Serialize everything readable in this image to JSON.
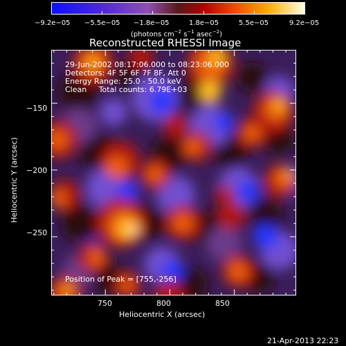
{
  "colorbar": {
    "ticks": [
      "−9.2e−05",
      "−5.5e−05",
      "−1.8e−05",
      "1.8e−05",
      "5.5e−05",
      "9.2e−05"
    ],
    "units_label": "(photons cm",
    "units_sup1": "−2",
    "units_mid": " s",
    "units_sup2": "−1",
    "units_end": " asec",
    "units_sup3": "−2",
    "units_close": ")"
  },
  "chart_data": {
    "type": "heatmap",
    "title": "Reconstructed RHESSI Image",
    "xlabel": "Heliocentric X (arcsec)",
    "ylabel": "Heliocentric Y (arcsec)",
    "xlim": [
      708,
      898
    ],
    "ylim": [
      -294,
      -110
    ],
    "x_ticks": [
      750,
      800,
      850
    ],
    "y_ticks": [
      -150,
      -200,
      -250
    ],
    "color_range": [
      -9.2e-05,
      9.2e-05
    ],
    "annotations": [
      "29-Jun-2002 08:17:06.000 to 08:23:06.000",
      "Detectors: 4F 5F 6F 7F 8F, Att 0",
      "Energy Range: 25.0 - 50.0 keV",
      "Clean     Total counts: 6.79E+03"
    ],
    "peak_label": "Position of Peak = [755,-256]",
    "peak": [
      755,
      -256
    ]
  },
  "footer": {
    "date": "21-Apr-2013 22:23"
  }
}
